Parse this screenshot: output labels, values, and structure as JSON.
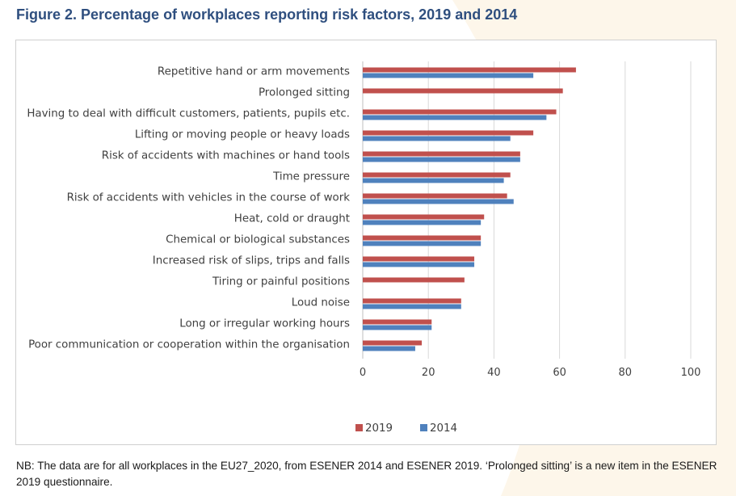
{
  "figure": {
    "title": "Figure 2. Percentage of workplaces reporting risk factors, 2019 and 2014",
    "note": "NB: The data are for all workplaces in the EU27_2020, from ESENER 2014 and ESENER 2019. ‘Prolonged sitting’ is a new item in the ESENER 2019 questionnaire."
  },
  "colors": {
    "series_2019": "#c0504d",
    "series_2014": "#4f81bd",
    "title": "#2f4f7f"
  },
  "chart_data": {
    "type": "bar",
    "orientation": "horizontal",
    "title": "",
    "xlabel": "",
    "ylabel": "",
    "xlim": [
      0,
      100
    ],
    "ticks": [
      0,
      20,
      40,
      60,
      80,
      100
    ],
    "grid": "vertical",
    "legend": "bottom",
    "categories": [
      "Repetitive hand or arm movements",
      "Prolonged sitting",
      "Having to deal with difficult customers, patients, pupils etc.",
      "Lifting or moving people or heavy loads",
      "Risk of accidents with machines or hand tools",
      "Time pressure",
      "Risk of accidents with vehicles in the course of work",
      "Heat, cold or draught",
      "Chemical or biological substances",
      "Increased risk of slips, trips and falls",
      "Tiring or painful positions",
      "Loud noise",
      "Long or irregular working hours",
      "Poor communication or cooperation within the organisation"
    ],
    "series": [
      {
        "name": "2019",
        "color": "#c0504d",
        "values": [
          65,
          61,
          59,
          52,
          48,
          45,
          44,
          37,
          36,
          34,
          31,
          30,
          21,
          18
        ]
      },
      {
        "name": "2014",
        "color": "#4f81bd",
        "values": [
          52,
          null,
          56,
          45,
          48,
          43,
          46,
          36,
          36,
          34,
          null,
          30,
          21,
          16
        ]
      }
    ]
  }
}
